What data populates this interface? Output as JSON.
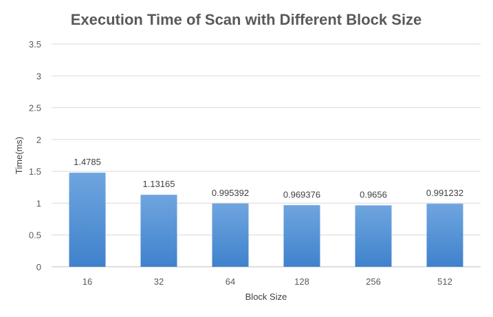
{
  "chart_data": {
    "type": "bar",
    "title": "Execution Time of Scan with Different Block Size",
    "xlabel": "Block Size",
    "ylabel": "Time(ms)",
    "categories": [
      "16",
      "32",
      "64",
      "128",
      "256",
      "512"
    ],
    "values": [
      1.4785,
      1.13165,
      0.995392,
      0.969376,
      0.9656,
      0.991232
    ],
    "value_labels": [
      "1.4785",
      "1.13165",
      "0.995392",
      "0.969376",
      "0.9656",
      "0.991232"
    ],
    "ylim": [
      0,
      3.5
    ],
    "yticks": [
      0,
      0.5,
      1,
      1.5,
      2,
      2.5,
      3,
      3.5
    ],
    "ytick_labels": [
      "0",
      "0.5",
      "1",
      "1.5",
      "2",
      "2.5",
      "3",
      "3.5"
    ],
    "grid": true,
    "legend": "none",
    "colors": {
      "bar_top": "#6fa5df",
      "bar_bottom": "#3f82cc",
      "grid": "#d9d9d9",
      "axis": "#bfbfbf",
      "title": "#595959",
      "text": "#595959"
    }
  }
}
